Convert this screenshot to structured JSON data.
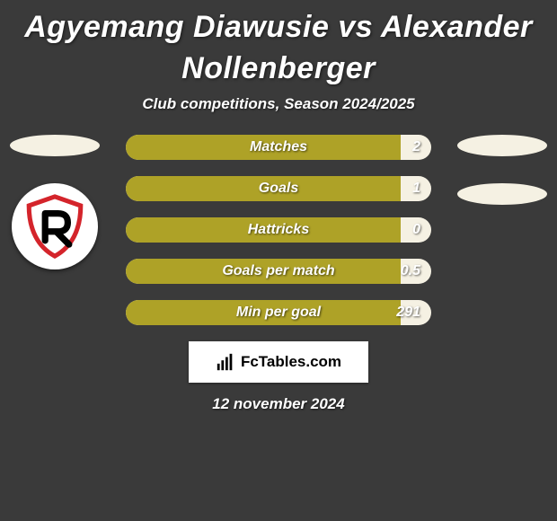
{
  "title_line1": "Agyemang Diawusie vs Alexander",
  "title_line2": "Nollenberger",
  "subtitle": "Club competitions, Season 2024/2025",
  "date": "12 november 2024",
  "footer_brand": "FcTables.com",
  "colors": {
    "background": "#3a3a3a",
    "player1": "#f5f1e3",
    "player2": "#aea227",
    "logo_red": "#d4242b"
  },
  "player1": {
    "oval_color": "#f5f1e3"
  },
  "player2": {
    "oval_color": "#f5f1e3",
    "oval2_color": "#f5f1e3"
  },
  "stats": [
    {
      "label": "Matches",
      "value": "2",
      "p1_pct": 0,
      "p2_pct": 100,
      "p1_color": "#f5f1e3",
      "p2_color": "#aea227"
    },
    {
      "label": "Goals",
      "value": "1",
      "p1_pct": 0,
      "p2_pct": 100,
      "p1_color": "#f5f1e3",
      "p2_color": "#aea227"
    },
    {
      "label": "Hattricks",
      "value": "0",
      "p1_pct": 0,
      "p2_pct": 100,
      "p1_color": "#f5f1e3",
      "p2_color": "#aea227"
    },
    {
      "label": "Goals per match",
      "value": "0.5",
      "p1_pct": 0,
      "p2_pct": 100,
      "p1_color": "#f5f1e3",
      "p2_color": "#aea227"
    },
    {
      "label": "Min per goal",
      "value": "291",
      "p1_pct": 0,
      "p2_pct": 100,
      "p1_color": "#f5f1e3",
      "p2_color": "#aea227"
    }
  ]
}
